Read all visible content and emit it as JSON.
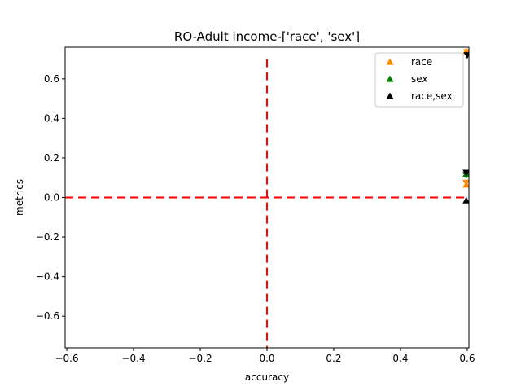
{
  "chart_data": {
    "type": "scatter",
    "title": "RO-Adult income-['race', 'sex']",
    "xlabel": "accuracy",
    "ylabel": "metrics",
    "xlim": [
      -0.605,
      0.605
    ],
    "ylim": [
      -0.76,
      0.76
    ],
    "xticks": [
      -0.6,
      -0.4,
      -0.2,
      0.0,
      0.2,
      0.4,
      0.6
    ],
    "xtick_labels": [
      "−0.6",
      "−0.4",
      "−0.2",
      "0.0",
      "0.2",
      "0.4",
      "0.6"
    ],
    "yticks": [
      -0.6,
      -0.4,
      -0.2,
      0.0,
      0.2,
      0.4,
      0.6
    ],
    "ytick_labels": [
      "−0.6",
      "−0.4",
      "−0.2",
      "0.0",
      "0.2",
      "0.4",
      "0.6"
    ],
    "grid": false,
    "legend_position": "top-right",
    "reference_lines": [
      {
        "orientation": "horizontal",
        "value": 0.0,
        "color": "#ff0000",
        "style": "dashed"
      },
      {
        "orientation": "vertical",
        "value": 0.0,
        "color": "#ff0000",
        "style": "dashed",
        "range": [
          -0.76,
          0.7
        ]
      }
    ],
    "series": [
      {
        "name": "race",
        "color": "#ff8c00",
        "points": [
          {
            "x": 0.597,
            "y": 0.74,
            "marker": "triangle-up"
          },
          {
            "x": 0.597,
            "y": 0.065,
            "marker": "triangle-up"
          },
          {
            "x": 0.597,
            "y": 0.075,
            "marker": "triangle-down"
          },
          {
            "x": 0.6,
            "y": 0.735,
            "marker": "triangle-down"
          }
        ]
      },
      {
        "name": "sex",
        "color": "#008000",
        "points": [
          {
            "x": 0.597,
            "y": 0.12,
            "marker": "triangle-up"
          },
          {
            "x": 0.597,
            "y": 0.115,
            "marker": "triangle-down"
          }
        ]
      },
      {
        "name": "race,sex",
        "color": "#000000",
        "points": [
          {
            "x": 0.597,
            "y": -0.015,
            "marker": "triangle-up"
          },
          {
            "x": 0.597,
            "y": 0.125,
            "marker": "triangle-down"
          },
          {
            "x": 0.6,
            "y": 0.72,
            "marker": "triangle-down"
          }
        ]
      }
    ]
  }
}
